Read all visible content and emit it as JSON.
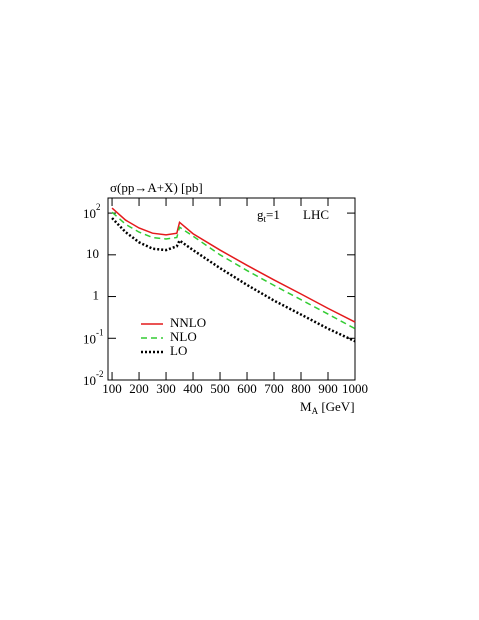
{
  "chart_data": {
    "type": "line",
    "title": "σ(pp→A+X) [pb]",
    "annotations": [
      {
        "text": "g",
        "sub": "t",
        "rest": "=1"
      },
      {
        "text": "LHC"
      }
    ],
    "x_label": {
      "text": "M",
      "sub": "A",
      "rest": " [GeV]"
    },
    "x": [
      100,
      150,
      200,
      250,
      300,
      340,
      350,
      400,
      500,
      600,
      700,
      800,
      900,
      1000
    ],
    "series": [
      {
        "name": "NNLO",
        "color": "#e41a1c",
        "dash": "none",
        "values": [
          132,
          68,
          44,
          33,
          30,
          33,
          60,
          32,
          13,
          5.6,
          2.5,
          1.15,
          0.52,
          0.245
        ]
      },
      {
        "name": "NLO",
        "color": "#33cc33",
        "dash": "6 4",
        "values": [
          105,
          54,
          35,
          26,
          24,
          26,
          46,
          28,
          10,
          4.2,
          1.85,
          0.84,
          0.38,
          0.17
        ]
      },
      {
        "name": "LO",
        "color": "#000000",
        "dash": "2 2",
        "values": [
          76,
          35,
          20,
          14,
          13,
          16,
          22,
          13,
          4.8,
          1.9,
          0.8,
          0.37,
          0.17,
          0.085
        ]
      }
    ],
    "xlim": [
      85,
      1000
    ],
    "xticks": [
      100,
      200,
      300,
      400,
      500,
      600,
      700,
      800,
      900,
      1000
    ],
    "ylim": [
      0.01,
      230
    ],
    "log_y": true,
    "yticks": [
      {
        "value": 100,
        "label": "10",
        "exponent": "2"
      },
      10,
      1,
      {
        "value": 0.1,
        "label": "10",
        "exponent": "-1"
      },
      {
        "value": 0.01,
        "label": "10",
        "exponent": "-2"
      }
    ],
    "legend": "lower left"
  }
}
